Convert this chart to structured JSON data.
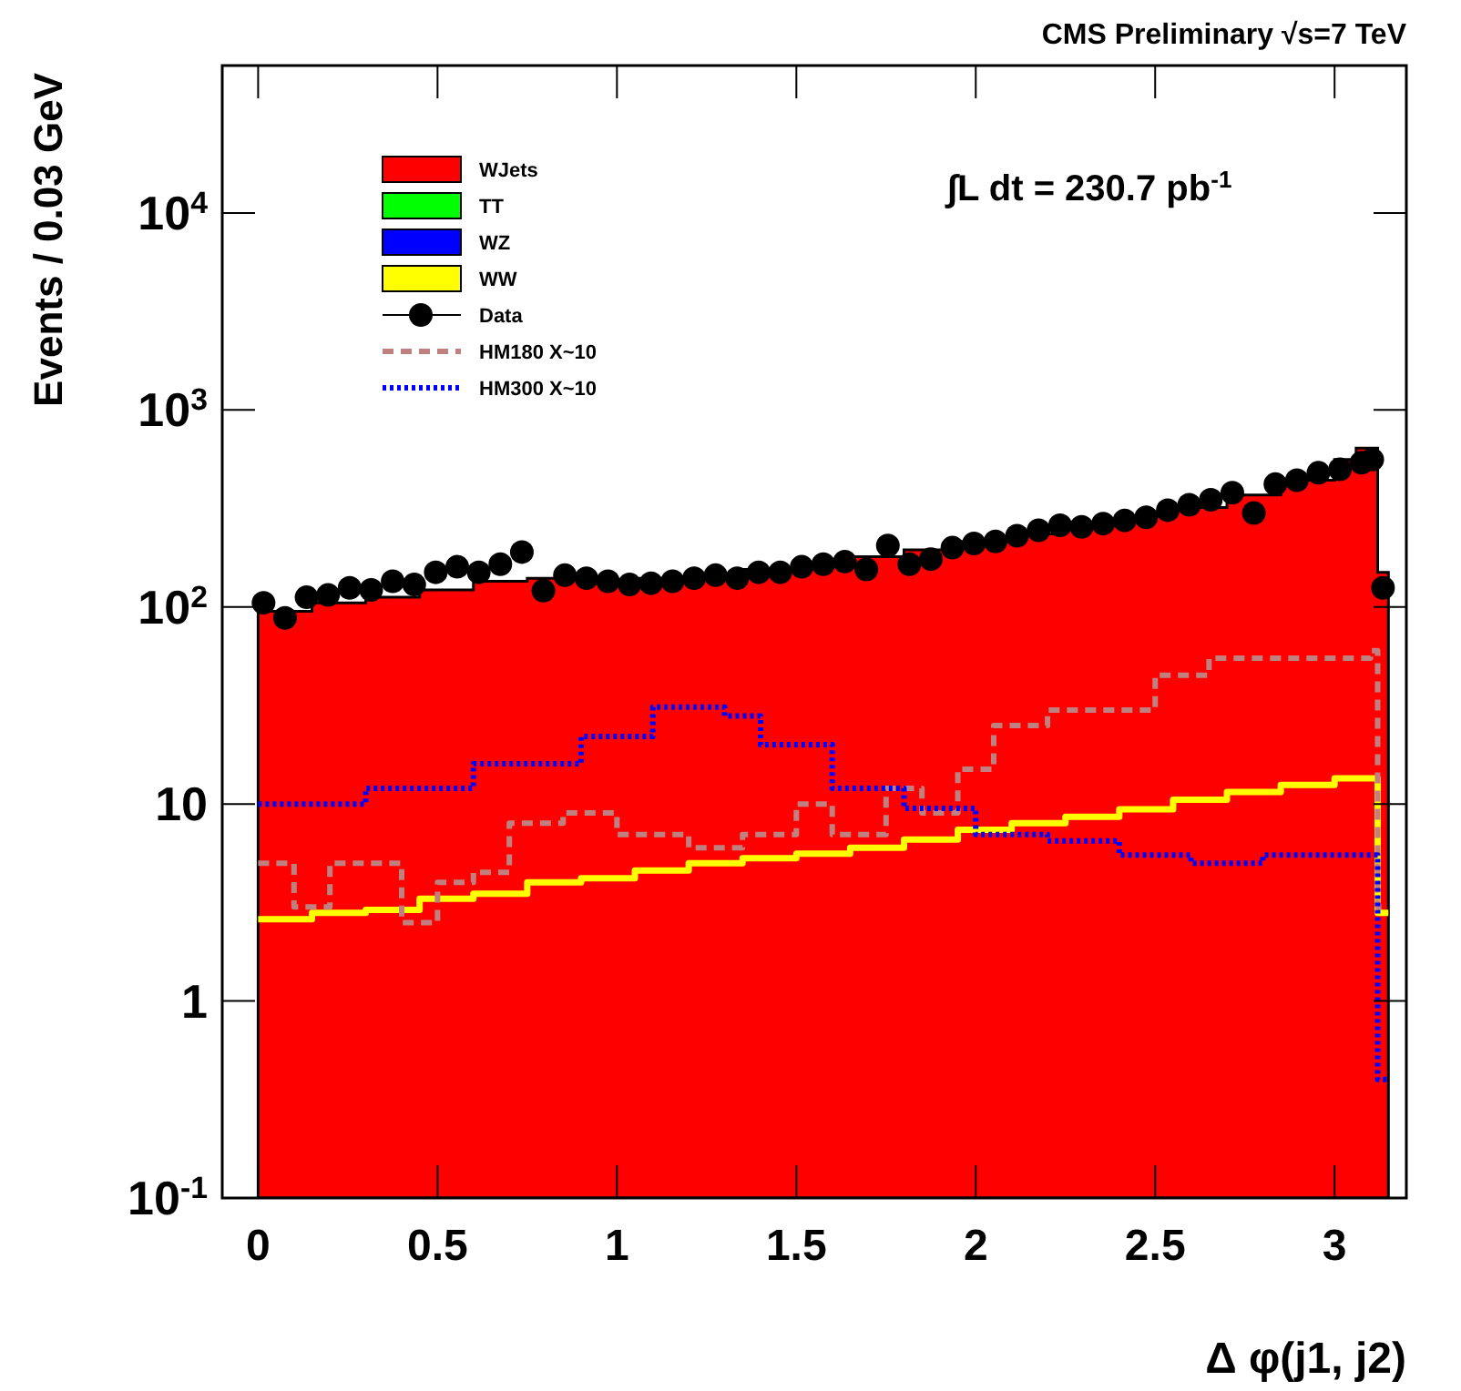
{
  "chart_data": {
    "type": "step",
    "title": "CMS Preliminary √s=7 TeV",
    "xlabel": "Δ φ(j1, j2)",
    "ylabel": "Events / 0.03 GeV",
    "annotations": [
      "∫L dt = 230.7 pb$^{-1}$"
    ],
    "log": "y",
    "legend": "top left",
    "grid": false,
    "xlim": [
      -0.1,
      3.2
    ],
    "xticks": [
      0,
      0.5,
      1,
      1.5,
      2,
      2.5,
      3
    ],
    "ylim": [
      0.1,
      56000
    ],
    "yticks": [
      {
        "value": 0.1,
        "label": "10$^{-1}$"
      },
      1,
      10,
      {
        "value": 100,
        "label": "10$^{2}$"
      },
      {
        "value": 1000,
        "label": "10$^{3}$"
      },
      {
        "value": 10000,
        "label": "10$^{4}$"
      }
    ],
    "series": [
      {
        "name": "WJets",
        "type": "area",
        "color": "#ff0000",
        "x": [
          0,
          0.15,
          0.3,
          0.45,
          0.6,
          0.75,
          0.9,
          1.05,
          1.2,
          1.35,
          1.5,
          1.65,
          1.8,
          1.95,
          2.1,
          2.25,
          2.4,
          2.55,
          2.7,
          2.85,
          3.0,
          3.06,
          3.12,
          3.15
        ],
        "values": [
          95,
          105,
          112,
          122,
          135,
          140,
          138,
          140,
          145,
          155,
          165,
          180,
          195,
          215,
          235,
          260,
          290,
          320,
          370,
          440,
          560,
          640,
          150,
          150
        ]
      },
      {
        "name": "TT",
        "type": "area",
        "color": "#00ff00"
      },
      {
        "name": "WZ",
        "type": "area",
        "color": "#0000ff"
      },
      {
        "name": "WW",
        "color": "#ffff00",
        "x": [
          0,
          0.15,
          0.3,
          0.45,
          0.6,
          0.75,
          0.9,
          1.05,
          1.2,
          1.35,
          1.5,
          1.65,
          1.8,
          1.95,
          2.1,
          2.25,
          2.4,
          2.55,
          2.7,
          2.85,
          3.0,
          3.12,
          3.15
        ],
        "values": [
          2.6,
          2.8,
          2.9,
          3.3,
          3.5,
          4.0,
          4.2,
          4.6,
          5.0,
          5.3,
          5.6,
          6.0,
          6.6,
          7.4,
          8.0,
          8.6,
          9.4,
          10.5,
          11.5,
          12.5,
          13.5,
          2.8,
          2.8
        ]
      },
      {
        "name": "Data",
        "type": "scatter",
        "color": "#000000",
        "marker": "circle",
        "x": [
          0.015,
          0.075,
          0.135,
          0.195,
          0.255,
          0.315,
          0.375,
          0.435,
          0.495,
          0.555,
          0.615,
          0.675,
          0.735,
          0.795,
          0.855,
          0.915,
          0.975,
          1.035,
          1.095,
          1.155,
          1.215,
          1.275,
          1.335,
          1.395,
          1.455,
          1.515,
          1.575,
          1.635,
          1.695,
          1.755,
          1.815,
          1.875,
          1.935,
          1.995,
          2.055,
          2.115,
          2.175,
          2.235,
          2.295,
          2.355,
          2.415,
          2.475,
          2.535,
          2.595,
          2.655,
          2.715,
          2.775,
          2.835,
          2.895,
          2.955,
          3.015,
          3.075,
          3.105,
          3.135
        ],
        "values": [
          105,
          88,
          112,
          115,
          125,
          122,
          135,
          130,
          150,
          160,
          150,
          165,
          190,
          121,
          145,
          140,
          135,
          130,
          132,
          135,
          140,
          145,
          140,
          150,
          150,
          160,
          165,
          170,
          155,
          205,
          165,
          175,
          200,
          210,
          215,
          230,
          245,
          260,
          255,
          265,
          275,
          285,
          310,
          330,
          350,
          380,
          300,
          420,
          440,
          480,
          500,
          540,
          560,
          125
        ]
      },
      {
        "name": "HM180 X~10",
        "line_style": "dashed",
        "color": "#c08080",
        "x": [
          0,
          0.1,
          0.2,
          0.3,
          0.4,
          0.5,
          0.6,
          0.7,
          0.85,
          1.0,
          1.2,
          1.35,
          1.5,
          1.6,
          1.75,
          1.85,
          1.95,
          2.05,
          2.2,
          2.35,
          2.5,
          2.65,
          2.8,
          2.95,
          3.1,
          3.12,
          3.15
        ],
        "values": [
          5,
          3,
          5,
          5,
          2.5,
          4,
          4.5,
          8,
          9,
          7,
          6,
          7,
          10,
          7,
          12,
          9,
          15,
          25,
          30,
          30,
          45,
          55,
          55,
          55,
          60,
          3,
          3
        ]
      },
      {
        "name": "HM300 X~10",
        "line_style": "dotted",
        "color": "#0000ff",
        "x": [
          0,
          0.3,
          0.6,
          0.9,
          1.1,
          1.3,
          1.4,
          1.6,
          1.8,
          2.0,
          2.2,
          2.4,
          2.6,
          2.8,
          3.0,
          3.12,
          3.15
        ],
        "values": [
          10,
          12,
          16,
          22,
          31,
          28,
          20,
          12,
          9.5,
          7,
          6.5,
          5.5,
          5,
          5.5,
          5.5,
          0.4,
          0.4
        ]
      }
    ]
  }
}
